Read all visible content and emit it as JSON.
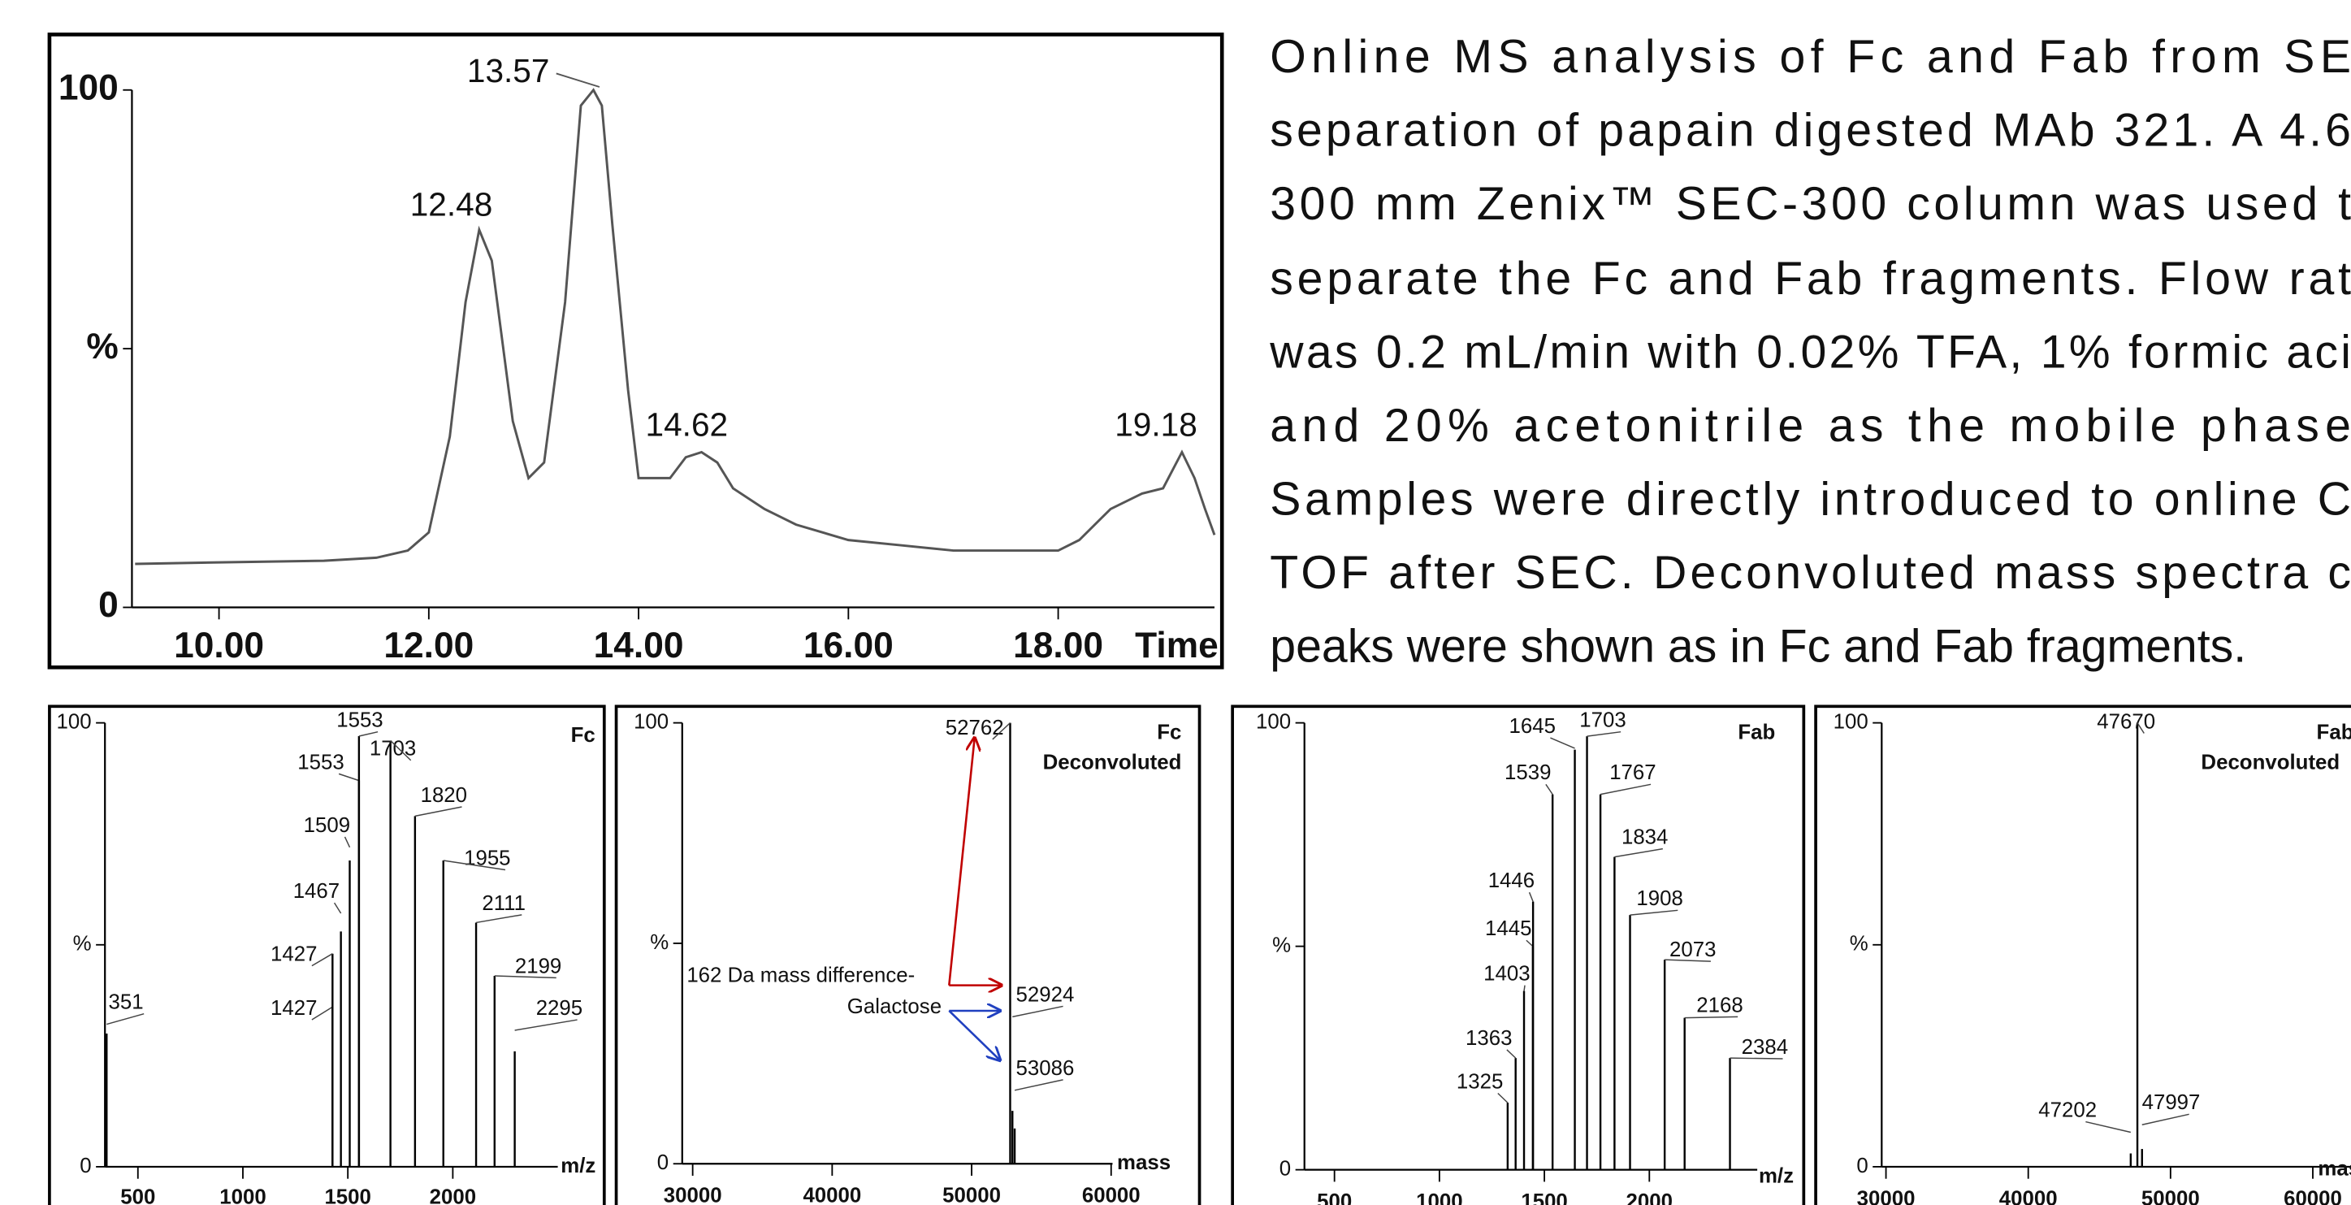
{
  "caption": {
    "lines": [
      "Online MS analysis of Fc and Fab from SE",
      "separation of papain digested MAb 321. A 4.6",
      "300 mm Zenix™ SEC-300 column was used t",
      "separate the Fc and Fab fragments. Flow rat",
      "was 0.2 mL/min with 0.02% TFA, 1% formic aci",
      "and 20% acetonitrile as the mobile phase",
      "Samples were directly introduced to online C",
      "TOF after SEC. Deconvoluted mass spectra c",
      "peaks were shown as in Fc and Fab fragments."
    ]
  },
  "chart_data": [
    {
      "type": "line",
      "color": "#555555",
      "x": [
        9.2,
        10.0,
        11.0,
        11.5,
        11.8,
        12.0,
        12.2,
        12.35,
        12.48,
        12.6,
        12.8,
        12.95,
        13.1,
        13.3,
        13.45,
        13.57,
        13.65,
        13.75,
        13.9,
        14.0,
        14.1,
        14.3,
        14.45,
        14.6,
        14.75,
        14.9,
        15.2,
        15.5,
        16.0,
        16.5,
        17.0,
        17.5,
        18.0,
        18.2,
        18.5,
        18.8,
        19.0,
        19.18,
        19.3,
        19.4,
        19.49
      ],
      "values": [
        8.4,
        8.7,
        9,
        9.6,
        11,
        14.5,
        33,
        59,
        73,
        67,
        36,
        25,
        28,
        59,
        97,
        100,
        97,
        74,
        42,
        25,
        25,
        25,
        29,
        30,
        28,
        23,
        19,
        16,
        13,
        12,
        11,
        11,
        11,
        13,
        19,
        22,
        23,
        30,
        25,
        19,
        14
      ],
      "peak_labels": [
        12.48,
        13.57,
        14.62,
        19.18
      ],
      "xlim": [
        9.17,
        19.49
      ],
      "xticks": [
        {
          "value": 10,
          "label": "10.00"
        },
        {
          "value": 12,
          "label": "12.00"
        },
        {
          "value": 14,
          "label": "14.00"
        },
        {
          "value": 16,
          "label": "16.00"
        },
        {
          "value": 18,
          "label": "18.00"
        }
      ],
      "xlabel": "Time",
      "ylim": [
        0,
        100
      ],
      "yticks": [
        0,
        {
          "value": 50,
          "label": "%"
        },
        100
      ]
    },
    {
      "type": "stick",
      "color": "#000000",
      "title": "Fc",
      "x": [
        351,
        1427,
        1427,
        1467,
        1509,
        1553,
        1553,
        1703,
        1820,
        1955,
        2111,
        2199,
        2295
      ],
      "values": [
        30,
        36,
        48,
        53,
        69,
        87,
        97,
        96,
        79,
        69,
        55,
        43,
        26
      ],
      "xlim": [
        343,
        2500
      ],
      "xticks": [
        500,
        1000,
        1500,
        2000
      ],
      "xlabel": "m/z",
      "ylim": [
        0,
        100
      ],
      "yticks": [
        0,
        {
          "value": 50,
          "label": "%"
        },
        100
      ]
    },
    {
      "type": "stick",
      "color": "#000000",
      "title": "Fc",
      "subtitle": "Deconvoluted",
      "x": [
        52762,
        52924,
        53086
      ],
      "values": [
        100,
        12,
        8
      ],
      "annotations": [
        "162 Da mass difference-",
        "Galactose"
      ],
      "xlim": [
        29250,
        60100
      ],
      "xticks": [
        30000,
        40000,
        50000,
        60000
      ],
      "xlabel": "mass",
      "ylim": [
        0,
        100
      ],
      "yticks": [
        0,
        {
          "value": 50,
          "label": "%"
        },
        100
      ]
    },
    {
      "type": "stick",
      "color": "#000000",
      "title": "Fab",
      "x": [
        1325,
        1363,
        1403,
        1445,
        1446,
        1539,
        1645,
        1703,
        1767,
        1834,
        1908,
        2073,
        2168,
        2384
      ],
      "values": [
        15,
        25,
        40,
        50,
        60,
        84,
        94,
        97,
        84,
        70,
        57,
        47,
        34,
        25
      ],
      "xlim": [
        357,
        2514
      ],
      "xticks": [
        500,
        1000,
        1500,
        2000
      ],
      "xlabel": "m/z",
      "ylim": [
        0,
        100
      ],
      "yticks": [
        0,
        {
          "value": 50,
          "label": "%"
        },
        100
      ]
    },
    {
      "type": "stick",
      "color": "#000000",
      "title": "Fab",
      "subtitle": "Deconvoluted",
      "x": [
        47202,
        47670,
        47997
      ],
      "values": [
        3,
        100,
        4
      ],
      "xlim": [
        29700,
        63000
      ],
      "xticks": [
        30000,
        40000,
        50000,
        60000
      ],
      "xlabel": "mass",
      "ylim": [
        0,
        100
      ],
      "yticks": [
        0,
        {
          "value": 50,
          "label": "%"
        },
        100
      ]
    }
  ]
}
